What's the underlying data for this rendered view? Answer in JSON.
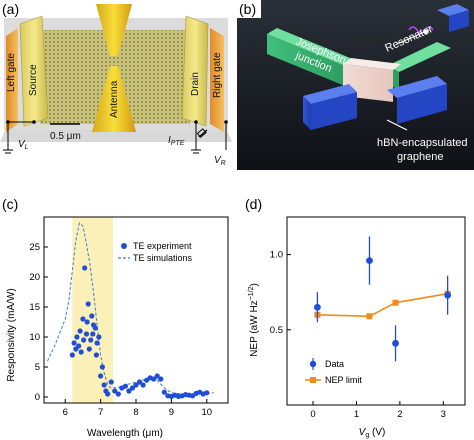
{
  "panel_a": {
    "label": "(a)",
    "left_gate": "Left gate",
    "source": "Source",
    "antenna": "Antenna",
    "drain": "Drain",
    "right_gate": "Right gate",
    "scale_bar": "0.5 μm",
    "v_left": "V",
    "v_left_sub": "L",
    "current": "I",
    "current_sub": "PTE",
    "v_right": "V",
    "v_right_sub": "R"
  },
  "panel_b": {
    "label": "(b)",
    "josephson": "Josephson",
    "junction": "junction",
    "resonator": "Resonator",
    "hbn_line1": "hBN-encapsulated",
    "hbn_line2": "graphene"
  },
  "panel_c": {
    "label": "(c)",
    "ylabel": "Responsivity (mA/W)",
    "xlabel": "Wavelength (μm)",
    "legend_experiment": "TE experiment",
    "legend_simulation": "TE simulations"
  },
  "panel_d": {
    "label": "(d)",
    "ylabel": "NEP (aW Hz",
    "ylabel_sup": "−1/2",
    "ylabel_end": ")",
    "xlabel_main": "V",
    "xlabel_sub": "g",
    "xlabel_unit": " (V)",
    "legend_data": "Data",
    "legend_limit": "NEP limit"
  },
  "chart_data": [
    {
      "type": "scatter",
      "xlabel": "Wavelength (μm)",
      "ylabel": "Responsivity (mA/W)",
      "xlim": [
        5.4,
        10.6
      ],
      "ylim": [
        -1,
        30
      ],
      "xticks": [
        6,
        7,
        8,
        9,
        10
      ],
      "yticks": [
        0,
        5,
        10,
        15,
        20,
        25
      ],
      "highlight_band": [
        6.2,
        7.35
      ],
      "highlight_color": "#fbf0b8",
      "series": [
        {
          "name": "TE experiment",
          "style": "markers",
          "color": "#1f4fd6",
          "x": [
            6.2,
            6.25,
            6.3,
            6.33,
            6.38,
            6.42,
            6.45,
            6.5,
            6.52,
            6.55,
            6.6,
            6.62,
            6.65,
            6.68,
            6.72,
            6.75,
            6.78,
            6.8,
            6.85,
            6.88,
            6.9,
            6.95,
            7.0,
            7.05,
            7.1,
            7.15,
            7.2,
            7.3,
            7.4,
            7.5,
            7.6,
            7.7,
            7.8,
            7.9,
            8.0,
            8.1,
            8.2,
            8.3,
            8.4,
            8.5,
            8.6,
            8.7,
            8.8,
            8.9,
            9.0,
            9.1,
            9.2,
            9.3,
            9.4,
            9.5,
            9.6,
            9.7,
            9.8,
            9.9,
            10.0
          ],
          "y": [
            7.0,
            9.0,
            8.0,
            10.0,
            8.5,
            11.0,
            7.5,
            13.0,
            9.5,
            21.5,
            10.5,
            12.5,
            15.5,
            8.0,
            9.5,
            13.5,
            10.5,
            12.0,
            11.5,
            7.0,
            9.0,
            10.0,
            3.5,
            5.0,
            2.0,
            1.0,
            0.5,
            2.5,
            1.0,
            0.5,
            1.5,
            1.8,
            1.0,
            1.5,
            2.0,
            2.5,
            2.0,
            2.8,
            3.2,
            3.0,
            3.5,
            3.0,
            0.8,
            0.2,
            0.1,
            0.3,
            0.1,
            0.2,
            0.4,
            0.3,
            0.2,
            0.6,
            0.8,
            0.5,
            0.7
          ]
        },
        {
          "name": "TE simulations",
          "style": "dashed",
          "color": "#3a7bd5",
          "x": [
            5.5,
            5.7,
            5.9,
            6.0,
            6.1,
            6.2,
            6.3,
            6.4,
            6.5,
            6.6,
            6.7,
            6.8,
            6.9,
            7.0,
            7.1,
            7.2,
            7.3,
            7.5,
            7.7,
            8.0,
            8.3,
            8.6,
            8.8,
            9.0,
            9.3,
            9.6,
            10.0,
            10.2
          ],
          "y": [
            6.0,
            8.5,
            11.5,
            13.0,
            16.0,
            21.0,
            26.0,
            29.0,
            28.5,
            25.5,
            22.0,
            17.5,
            12.0,
            7.0,
            4.0,
            2.0,
            1.5,
            1.6,
            2.0,
            2.5,
            3.0,
            2.8,
            1.5,
            0.7,
            0.5,
            0.5,
            0.6,
            0.7
          ]
        }
      ]
    },
    {
      "type": "line",
      "xlabel": "V_g (V)",
      "ylabel": "NEP (aW Hz^-1/2)",
      "xlim": [
        -0.6,
        3.5
      ],
      "ylim": [
        0.0,
        1.25
      ],
      "xticks": [
        0,
        1,
        2,
        3
      ],
      "yticks": [
        0.5,
        1.0
      ],
      "series": [
        {
          "name": "Data",
          "style": "markers-errorbars",
          "color": "#1f4fd6",
          "x": [
            0.1,
            1.3,
            1.9,
            3.1
          ],
          "y": [
            0.65,
            0.96,
            0.41,
            0.73
          ],
          "err": [
            0.1,
            0.16,
            0.12,
            0.13
          ]
        },
        {
          "name": "NEP limit",
          "style": "line-squares",
          "color": "#f28a1c",
          "x": [
            0.1,
            1.3,
            1.9,
            3.1
          ],
          "y": [
            0.6,
            0.59,
            0.68,
            0.74
          ]
        }
      ]
    }
  ]
}
